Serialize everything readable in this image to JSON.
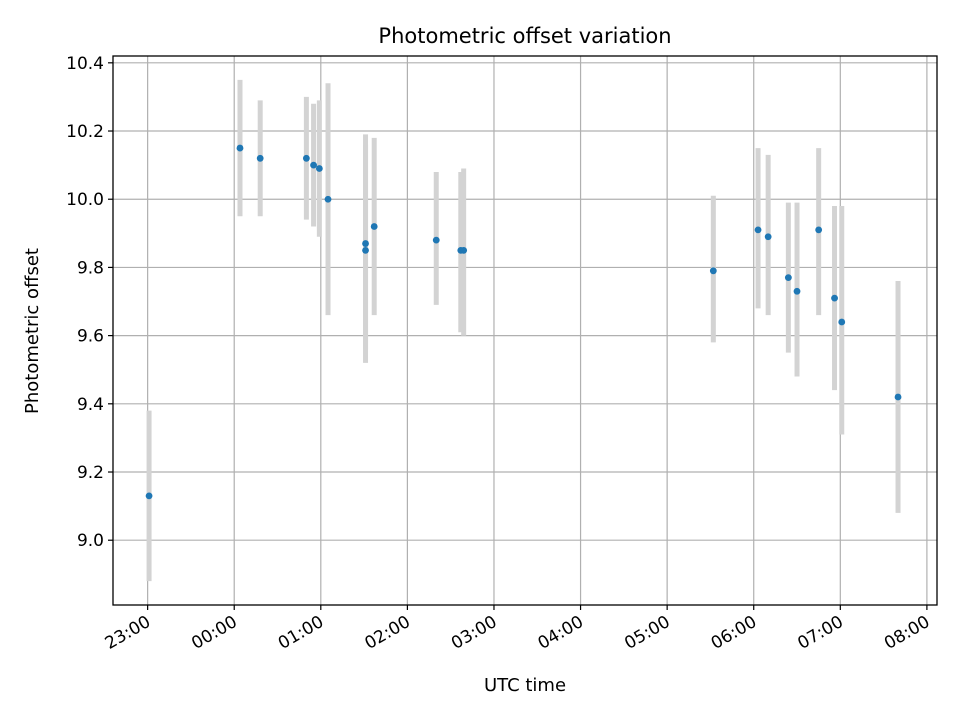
{
  "chart_data": {
    "type": "scatter",
    "title": "Photometric offset variation",
    "xlabel": "UTC time",
    "ylabel": "Photometric offset",
    "x_axis_kind": "time",
    "xlim": [
      "22:36",
      "08:07"
    ],
    "ylim": [
      8.81,
      10.42
    ],
    "x_ticks": [
      "23:00",
      "00:00",
      "01:00",
      "02:00",
      "03:00",
      "04:00",
      "05:00",
      "06:00",
      "07:00",
      "08:00"
    ],
    "y_ticks": [
      "9.0",
      "9.2",
      "9.4",
      "9.6",
      "9.8",
      "10.0",
      "10.2",
      "10.4"
    ],
    "grid": true,
    "colors": {
      "points": "#1f77b4",
      "error_bars": "#d3d3d3",
      "grid": "#b0b0b0"
    },
    "series": [
      {
        "x": [
          "23:01",
          "00:04",
          "00:18",
          "00:50",
          "00:55",
          "00:59",
          "01:05",
          "01:31",
          "01:31",
          "01:37",
          "02:20",
          "02:37",
          "02:39",
          "05:32",
          "06:03",
          "06:10",
          "06:24",
          "06:30",
          "06:45",
          "06:56",
          "07:01",
          "07:40"
        ],
        "y": [
          9.13,
          10.15,
          10.12,
          10.12,
          10.1,
          10.09,
          10.0,
          9.85,
          9.87,
          9.92,
          9.88,
          9.85,
          9.85,
          9.79,
          9.91,
          9.89,
          9.77,
          9.73,
          9.91,
          9.71,
          9.64,
          9.42
        ],
        "err_low": [
          8.88,
          9.95,
          9.95,
          9.94,
          9.92,
          9.89,
          9.66,
          9.52,
          9.56,
          9.66,
          9.69,
          9.61,
          9.6,
          9.58,
          9.68,
          9.66,
          9.55,
          9.48,
          9.66,
          9.44,
          9.31,
          9.08
        ],
        "err_high": [
          9.38,
          10.35,
          10.29,
          10.3,
          10.28,
          10.29,
          10.34,
          10.19,
          10.16,
          10.18,
          10.08,
          10.08,
          10.09,
          10.01,
          10.15,
          10.13,
          9.99,
          9.99,
          10.15,
          9.98,
          9.98,
          9.76
        ]
      }
    ]
  }
}
